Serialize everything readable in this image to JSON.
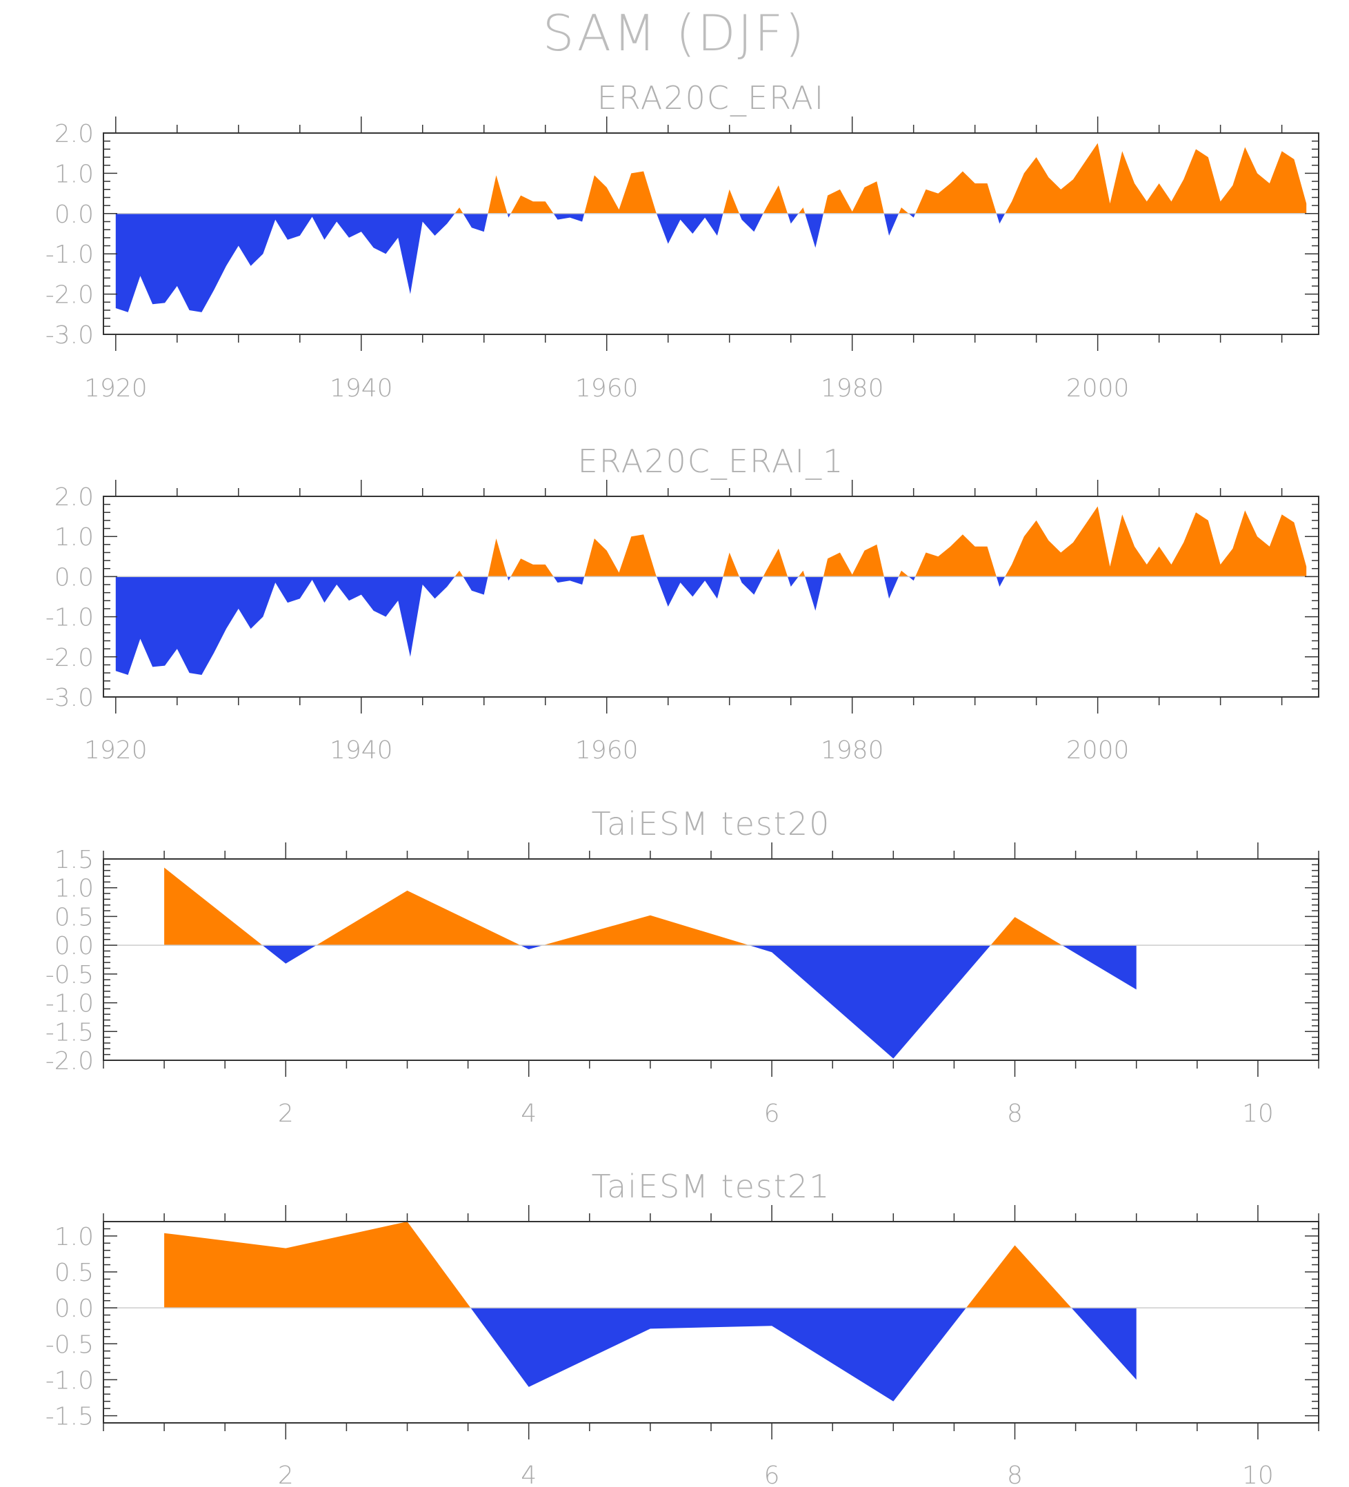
{
  "title": "SAM (DJF)",
  "colors": {
    "positive": "#ff8000",
    "negative": "#2641ea",
    "frame": "#333333",
    "text": "#aaaaaa",
    "zero_line": "#cccccc"
  },
  "chart_data": [
    {
      "type": "area",
      "title": "ERA20C_ERAI",
      "xlim": [
        1919,
        2018
      ],
      "ylim": [
        -3.0,
        2.0
      ],
      "xticks": [
        1920,
        1940,
        1960,
        1980,
        2000
      ],
      "yticks": [
        -3.0,
        -2.0,
        -1.0,
        0.0,
        1.0,
        2.0
      ],
      "ytick_labels": [
        "-3.0",
        "-2.0",
        "-1.0",
        "0.0",
        "1.0",
        "2.0"
      ],
      "fill": "above/below zero",
      "x": [
        1920,
        1921,
        1922,
        1923,
        1924,
        1925,
        1926,
        1927,
        1928,
        1929,
        1930,
        1931,
        1932,
        1933,
        1934,
        1935,
        1936,
        1937,
        1938,
        1939,
        1940,
        1941,
        1942,
        1943,
        1944,
        1945,
        1946,
        1947,
        1948,
        1949,
        1950,
        1951,
        1952,
        1953,
        1954,
        1955,
        1956,
        1957,
        1958,
        1959,
        1960,
        1961,
        1962,
        1963,
        1964,
        1965,
        1966,
        1967,
        1968,
        1969,
        1970,
        1971,
        1972,
        1973,
        1974,
        1975,
        1976,
        1977,
        1978,
        1979,
        1980,
        1981,
        1982,
        1983,
        1984,
        1985,
        1986,
        1987,
        1988,
        1989,
        1990,
        1991,
        1992,
        1993,
        1994,
        1995,
        1996,
        1997,
        1998,
        1999,
        2000,
        2001,
        2002,
        2003,
        2004,
        2005,
        2006,
        2007,
        2008,
        2009,
        2010,
        2011,
        2012,
        2013,
        2014,
        2015,
        2016,
        2017
      ],
      "values": [
        -2.35,
        -2.45,
        -1.55,
        -2.25,
        -2.22,
        -1.8,
        -2.4,
        -2.45,
        -1.9,
        -1.3,
        -0.8,
        -1.3,
        -1.0,
        -0.15,
        -0.65,
        -0.55,
        -0.08,
        -0.65,
        -0.2,
        -0.6,
        -0.45,
        -0.85,
        -1.0,
        -0.6,
        -2.0,
        -0.2,
        -0.55,
        -0.25,
        0.15,
        -0.35,
        -0.45,
        0.95,
        -0.1,
        0.45,
        0.3,
        0.3,
        -0.15,
        -0.1,
        -0.2,
        0.95,
        0.65,
        0.1,
        1.0,
        1.05,
        0.05,
        -0.75,
        -0.15,
        -0.5,
        -0.1,
        -0.55,
        0.6,
        -0.15,
        -0.45,
        0.15,
        0.7,
        -0.25,
        0.15,
        -0.85,
        0.45,
        0.6,
        0.05,
        0.65,
        0.8,
        -0.55,
        0.15,
        -0.1,
        0.6,
        0.5,
        0.75,
        1.05,
        0.75,
        0.75,
        -0.25,
        0.3,
        1.0,
        1.4,
        0.9,
        0.6,
        0.85,
        1.3,
        1.75,
        0.25,
        1.55,
        0.75,
        0.3,
        0.75,
        0.3,
        0.85,
        1.6,
        1.4,
        0.3,
        0.7,
        1.65,
        1.0,
        0.75,
        1.55,
        1.35,
        0.25
      ]
    },
    {
      "type": "area",
      "title": "ERA20C_ERAI_1",
      "xlim": [
        1919,
        2018
      ],
      "ylim": [
        -3.0,
        2.0
      ],
      "xticks": [
        1920,
        1940,
        1960,
        1980,
        2000
      ],
      "yticks": [
        -3.0,
        -2.0,
        -1.0,
        0.0,
        1.0,
        2.0
      ],
      "ytick_labels": [
        "-3.0",
        "-2.0",
        "-1.0",
        "0.0",
        "1.0",
        "2.0"
      ],
      "fill": "above/below zero",
      "x": [
        1920,
        1921,
        1922,
        1923,
        1924,
        1925,
        1926,
        1927,
        1928,
        1929,
        1930,
        1931,
        1932,
        1933,
        1934,
        1935,
        1936,
        1937,
        1938,
        1939,
        1940,
        1941,
        1942,
        1943,
        1944,
        1945,
        1946,
        1947,
        1948,
        1949,
        1950,
        1951,
        1952,
        1953,
        1954,
        1955,
        1956,
        1957,
        1958,
        1959,
        1960,
        1961,
        1962,
        1963,
        1964,
        1965,
        1966,
        1967,
        1968,
        1969,
        1970,
        1971,
        1972,
        1973,
        1974,
        1975,
        1976,
        1977,
        1978,
        1979,
        1980,
        1981,
        1982,
        1983,
        1984,
        1985,
        1986,
        1987,
        1988,
        1989,
        1990,
        1991,
        1992,
        1993,
        1994,
        1995,
        1996,
        1997,
        1998,
        1999,
        2000,
        2001,
        2002,
        2003,
        2004,
        2005,
        2006,
        2007,
        2008,
        2009,
        2010,
        2011,
        2012,
        2013,
        2014,
        2015,
        2016,
        2017
      ],
      "values": [
        -2.35,
        -2.45,
        -1.55,
        -2.25,
        -2.22,
        -1.8,
        -2.4,
        -2.45,
        -1.9,
        -1.3,
        -0.8,
        -1.3,
        -1.0,
        -0.15,
        -0.65,
        -0.55,
        -0.08,
        -0.65,
        -0.2,
        -0.6,
        -0.45,
        -0.85,
        -1.0,
        -0.6,
        -2.0,
        -0.2,
        -0.55,
        -0.25,
        0.15,
        -0.35,
        -0.45,
        0.95,
        -0.1,
        0.45,
        0.3,
        0.3,
        -0.15,
        -0.1,
        -0.2,
        0.95,
        0.65,
        0.1,
        1.0,
        1.05,
        0.05,
        -0.75,
        -0.15,
        -0.5,
        -0.1,
        -0.55,
        0.6,
        -0.15,
        -0.45,
        0.15,
        0.7,
        -0.25,
        0.15,
        -0.85,
        0.45,
        0.6,
        0.05,
        0.65,
        0.8,
        -0.55,
        0.15,
        -0.1,
        0.6,
        0.5,
        0.75,
        1.05,
        0.75,
        0.75,
        -0.25,
        0.3,
        1.0,
        1.4,
        0.9,
        0.6,
        0.85,
        1.3,
        1.75,
        0.25,
        1.55,
        0.75,
        0.3,
        0.75,
        0.3,
        0.85,
        1.6,
        1.4,
        0.3,
        0.7,
        1.65,
        1.0,
        0.75,
        1.55,
        1.35,
        0.25
      ]
    },
    {
      "type": "area",
      "title": "TaiESM test20",
      "xlim": [
        0.5,
        10.5
      ],
      "ylim": [
        -2.0,
        1.5
      ],
      "xticks": [
        2,
        4,
        6,
        8,
        10
      ],
      "yticks": [
        -2.0,
        -1.5,
        -1.0,
        -0.5,
        0.0,
        0.5,
        1.0,
        1.5
      ],
      "ytick_labels": [
        "-2.0",
        "-1.5",
        "-1.0",
        "-0.5",
        "0.0",
        "0.5",
        "1.0",
        "1.5"
      ],
      "fill": "above/below zero",
      "x": [
        1,
        2,
        3,
        4,
        5,
        6,
        7,
        8,
        9
      ],
      "values": [
        1.35,
        -0.32,
        0.95,
        -0.07,
        0.52,
        -0.12,
        -1.97,
        0.49,
        -0.77
      ]
    },
    {
      "type": "area",
      "title": "TaiESM test21",
      "xlim": [
        0.5,
        10.5
      ],
      "ylim": [
        -1.6,
        1.2
      ],
      "xticks": [
        2,
        4,
        6,
        8,
        10
      ],
      "yticks": [
        -1.5,
        -1.0,
        -0.5,
        0.0,
        0.5,
        1.0
      ],
      "ytick_labels": [
        "-1.5",
        "-1.0",
        "-0.5",
        "0.0",
        "0.5",
        "1.0"
      ],
      "fill": "above/below zero",
      "x": [
        1,
        2,
        3,
        4,
        5,
        6,
        7,
        8,
        9
      ],
      "values": [
        1.04,
        0.83,
        1.2,
        -1.1,
        -0.29,
        -0.25,
        -1.3,
        0.87,
        -1.0
      ]
    }
  ]
}
